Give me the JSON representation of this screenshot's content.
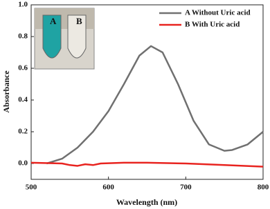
{
  "chart_data": {
    "type": "line",
    "x_label": "Wavelength (nm)",
    "y_label": "Absorbance",
    "xlim": [
      500,
      800
    ],
    "xticks": [
      500,
      600,
      700,
      800
    ],
    "ylim": [
      -0.1,
      1.0
    ],
    "yticks": [
      {
        "value": 0,
        "label": "0.0"
      },
      {
        "value": 0.2,
        "label": "0.2"
      },
      {
        "value": 0.4,
        "label": "0.4"
      },
      {
        "value": 0.6,
        "label": "0.6"
      },
      {
        "value": 0.8,
        "label": "0.8"
      },
      {
        "value": 1.0,
        "label": "1.0"
      }
    ],
    "inset_labels": [
      "A",
      "B"
    ],
    "series": [
      {
        "name": "A Without Uric acid",
        "color": "#707070",
        "x": [
          520,
          540,
          560,
          580,
          600,
          620,
          640,
          655,
          670,
          690,
          710,
          730,
          750,
          760,
          780,
          800
        ],
        "values": [
          0.0,
          0.03,
          0.1,
          0.2,
          0.33,
          0.5,
          0.68,
          0.74,
          0.7,
          0.5,
          0.27,
          0.12,
          0.08,
          0.085,
          0.12,
          0.2
        ]
      },
      {
        "name": "B With Uric acid",
        "color": "#e8231f",
        "x": [
          500,
          540,
          550,
          560,
          570,
          580,
          590,
          620,
          650,
          700,
          750,
          800
        ],
        "values": [
          0.005,
          0.0,
          -0.01,
          -0.015,
          -0.005,
          -0.01,
          0.0,
          0.005,
          0.005,
          0.0,
          -0.01,
          -0.02
        ]
      }
    ]
  }
}
